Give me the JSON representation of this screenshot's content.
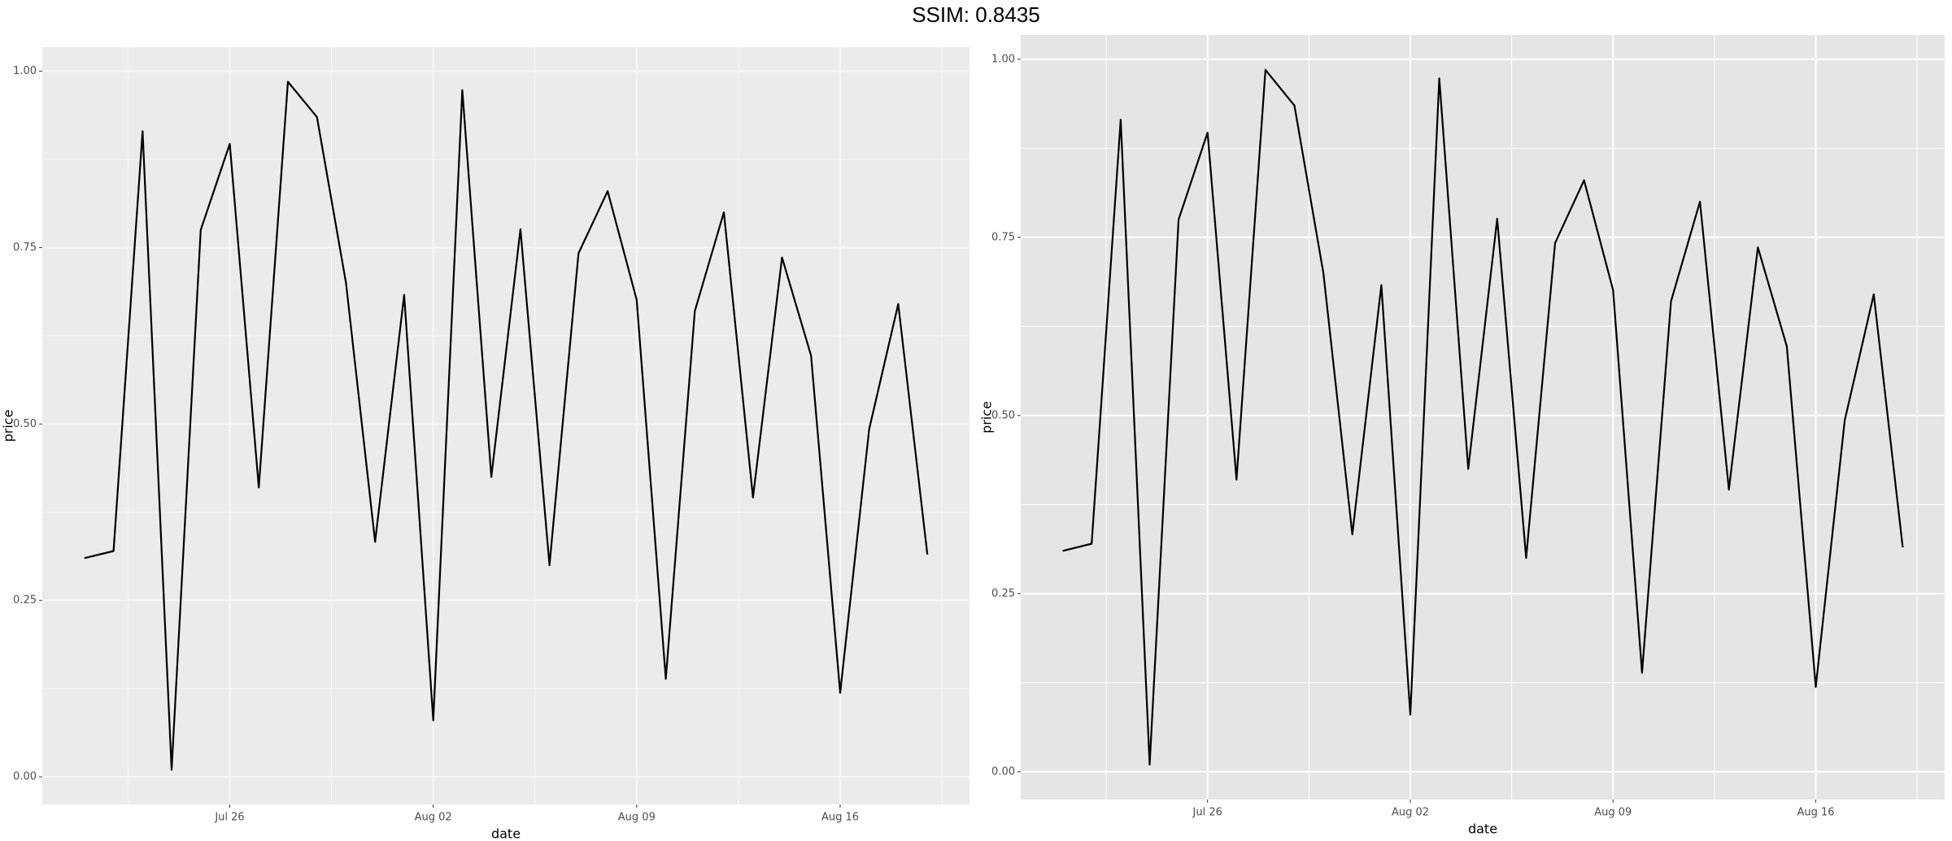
{
  "title": "SSIM: 0.8435",
  "chart_data": [
    {
      "type": "line",
      "xlabel": "date",
      "ylabel": "price",
      "x": [
        "Jul 21",
        "Jul 22",
        "Jul 23",
        "Jul 24",
        "Jul 25",
        "Jul 26",
        "Jul 27",
        "Jul 28",
        "Jul 29",
        "Jul 30",
        "Jul 31",
        "Aug 01",
        "Aug 02",
        "Aug 03",
        "Aug 04",
        "Aug 05",
        "Aug 06",
        "Aug 07",
        "Aug 08",
        "Aug 09",
        "Aug 10",
        "Aug 11",
        "Aug 12",
        "Aug 13",
        "Aug 14",
        "Aug 15",
        "Aug 16",
        "Aug 17",
        "Aug 18",
        "Aug 19"
      ],
      "values": [
        0.31,
        0.32,
        0.915,
        0.01,
        0.775,
        0.897,
        0.41,
        0.985,
        0.935,
        0.7,
        0.333,
        0.683,
        0.08,
        0.973,
        0.425,
        0.776,
        0.3,
        0.742,
        0.83,
        0.676,
        0.139,
        0.66,
        0.8,
        0.396,
        0.736,
        0.597,
        0.119,
        0.493,
        0.67,
        0.315
      ],
      "color": "#000000",
      "xticks": [
        "Jul 26",
        "Aug 02",
        "Aug 09",
        "Aug 16"
      ],
      "ylim": [
        -0.039,
        1.034
      ],
      "yticks": [
        {
          "value": 0,
          "label": "0.00"
        },
        {
          "value": 0.25,
          "label": "0.25"
        },
        {
          "value": 0.5,
          "label": "0.50"
        },
        {
          "value": 0.75,
          "label": "0.75"
        },
        {
          "value": 1,
          "label": "1.00"
        }
      ],
      "grid": true,
      "minor_grid": true,
      "background": "#ebebeb",
      "grid_color": "#f7f7f7"
    },
    {
      "type": "line",
      "xlabel": "date",
      "ylabel": "price",
      "x": [
        "Jul 21",
        "Jul 22",
        "Jul 23",
        "Jul 24",
        "Jul 25",
        "Jul 26",
        "Jul 27",
        "Jul 28",
        "Jul 29",
        "Jul 30",
        "Jul 31",
        "Aug 01",
        "Aug 02",
        "Aug 03",
        "Aug 04",
        "Aug 05",
        "Aug 06",
        "Aug 07",
        "Aug 08",
        "Aug 09",
        "Aug 10",
        "Aug 11",
        "Aug 12",
        "Aug 13",
        "Aug 14",
        "Aug 15",
        "Aug 16",
        "Aug 17",
        "Aug 18",
        "Aug 19"
      ],
      "values": [
        0.31,
        0.32,
        0.915,
        0.01,
        0.775,
        0.897,
        0.41,
        0.985,
        0.935,
        0.7,
        0.333,
        0.683,
        0.08,
        0.973,
        0.425,
        0.776,
        0.3,
        0.742,
        0.83,
        0.676,
        0.139,
        0.66,
        0.8,
        0.396,
        0.736,
        0.597,
        0.119,
        0.493,
        0.67,
        0.315
      ],
      "color": "#000000",
      "xticks": [
        "Jul 26",
        "Aug 02",
        "Aug 09",
        "Aug 16"
      ],
      "ylim": [
        -0.039,
        1.034
      ],
      "yticks": [
        {
          "value": 0,
          "label": "0.00"
        },
        {
          "value": 0.25,
          "label": "0.25"
        },
        {
          "value": 0.5,
          "label": "0.50"
        },
        {
          "value": 0.75,
          "label": "0.75"
        },
        {
          "value": 1,
          "label": "1.00"
        }
      ],
      "grid": true,
      "minor_grid": true,
      "background": "#e5e5e5",
      "grid_color": "#ffffff"
    }
  ]
}
